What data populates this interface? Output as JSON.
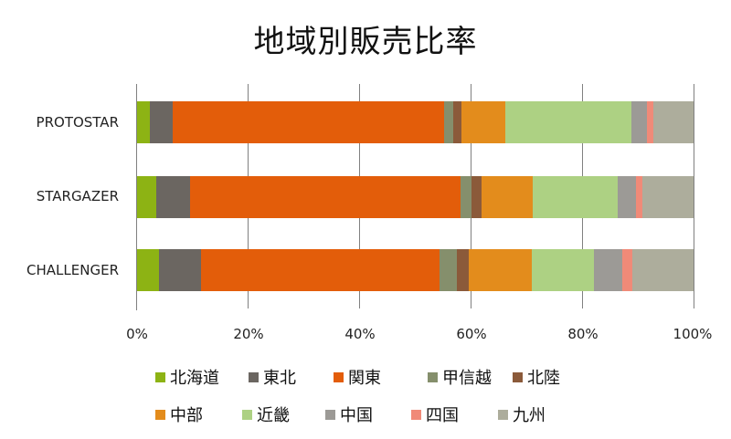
{
  "chart_data": {
    "type": "bar",
    "orientation": "horizontal",
    "stacked": "percent",
    "title": "地域別販売比率",
    "xlabel": "",
    "ylabel": "",
    "xlim": [
      0,
      100
    ],
    "grid": true,
    "legend_position": "bottom",
    "categories": [
      "PROTOSTAR",
      "STARGAZER",
      "CHALLENGER"
    ],
    "x_ticks": [
      "0%",
      "20%",
      "40%",
      "60%",
      "80%",
      "100%"
    ],
    "series": [
      {
        "name": "北海道",
        "color": "#8db314",
        "values": [
          2.5,
          3.6,
          4.1
        ]
      },
      {
        "name": "東北",
        "color": "#6b6661",
        "values": [
          4.1,
          6.1,
          7.5
        ]
      },
      {
        "name": "関東",
        "color": "#e35d0a",
        "values": [
          48.7,
          48.5,
          42.8
        ]
      },
      {
        "name": "甲信越",
        "color": "#858f6c",
        "values": [
          1.6,
          2.0,
          3.1
        ]
      },
      {
        "name": "北陸",
        "color": "#8b5a3a",
        "values": [
          1.5,
          1.8,
          2.1
        ]
      },
      {
        "name": "中部",
        "color": "#e38c1c",
        "values": [
          7.9,
          9.2,
          11.3
        ]
      },
      {
        "name": "近畿",
        "color": "#add183",
        "values": [
          22.6,
          15.2,
          11.1
        ]
      },
      {
        "name": "中国",
        "color": "#9c9a96",
        "values": [
          2.8,
          3.3,
          5.1
        ]
      },
      {
        "name": "四国",
        "color": "#f08a78",
        "values": [
          1.1,
          1.1,
          1.8
        ]
      },
      {
        "name": "九州",
        "color": "#adad9c",
        "values": [
          7.2,
          9.2,
          11.0
        ]
      }
    ]
  }
}
